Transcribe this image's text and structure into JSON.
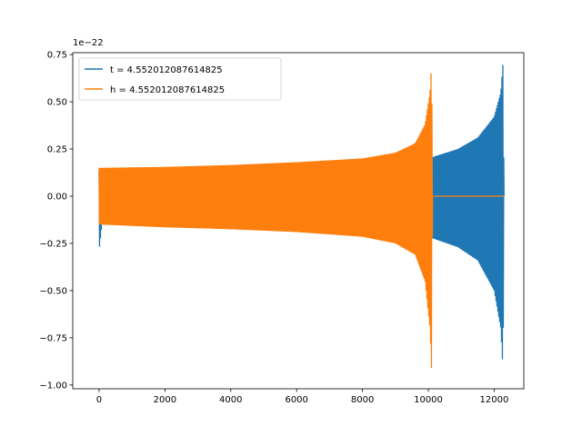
{
  "chart_data": {
    "type": "line",
    "title": "",
    "xlabel": "",
    "ylabel": "",
    "y_offset_label": "1e−22",
    "xlim": [
      -800,
      12900
    ],
    "ylim": [
      -1.02,
      0.76
    ],
    "x_ticks": [
      0,
      2000,
      4000,
      6000,
      8000,
      10000,
      12000
    ],
    "x_tick_labels": [
      "0",
      "2000",
      "4000",
      "6000",
      "8000",
      "10000",
      "12000"
    ],
    "y_ticks": [
      0.75,
      0.5,
      0.25,
      0.0,
      -0.25,
      -0.5,
      -0.75,
      -1.0
    ],
    "y_tick_labels": [
      "0.75",
      "0.50",
      "0.25",
      "0.00",
      "−0.25",
      "−0.50",
      "−0.75",
      "−1.00"
    ],
    "grid": false,
    "legend_placement": "top-left",
    "series": [
      {
        "name": "t = 4.552012087614825",
        "color": "#1f77b4",
        "envelope_points": [
          {
            "x": 0,
            "upper": 0.13,
            "lower": -0.29
          },
          {
            "x": 100,
            "upper": 0.13,
            "lower": -0.13
          },
          {
            "x": 2000,
            "upper": 0.145,
            "lower": -0.16
          },
          {
            "x": 4000,
            "upper": 0.155,
            "lower": -0.175
          },
          {
            "x": 6000,
            "upper": 0.165,
            "lower": -0.185
          },
          {
            "x": 8000,
            "upper": 0.18,
            "lower": -0.2
          },
          {
            "x": 10000,
            "upper": 0.2,
            "lower": -0.215
          },
          {
            "x": 10900,
            "upper": 0.25,
            "lower": -0.27
          },
          {
            "x": 11500,
            "upper": 0.31,
            "lower": -0.34
          },
          {
            "x": 12000,
            "upper": 0.42,
            "lower": -0.5
          },
          {
            "x": 12200,
            "upper": 0.55,
            "lower": -0.7
          },
          {
            "x": 12270,
            "upper": 0.71,
            "lower": -0.93
          },
          {
            "x": 12300,
            "upper": 0.0,
            "lower": 0.0
          }
        ]
      },
      {
        "name": "h = 4.552012087614825",
        "color": "#ff7f0e",
        "envelope_points": [
          {
            "x": 0,
            "upper": 0.15,
            "lower": -0.15
          },
          {
            "x": 2000,
            "upper": 0.155,
            "lower": -0.165
          },
          {
            "x": 4000,
            "upper": 0.165,
            "lower": -0.175
          },
          {
            "x": 6000,
            "upper": 0.18,
            "lower": -0.19
          },
          {
            "x": 8000,
            "upper": 0.2,
            "lower": -0.215
          },
          {
            "x": 9000,
            "upper": 0.23,
            "lower": -0.25
          },
          {
            "x": 9600,
            "upper": 0.28,
            "lower": -0.31
          },
          {
            "x": 9900,
            "upper": 0.38,
            "lower": -0.45
          },
          {
            "x": 10050,
            "upper": 0.55,
            "lower": -0.7
          },
          {
            "x": 10100,
            "upper": 0.71,
            "lower": -0.93
          },
          {
            "x": 10130,
            "upper": 0.0,
            "lower": 0.0
          },
          {
            "x": 12300,
            "upper": 0.0,
            "lower": 0.0
          }
        ]
      }
    ]
  }
}
